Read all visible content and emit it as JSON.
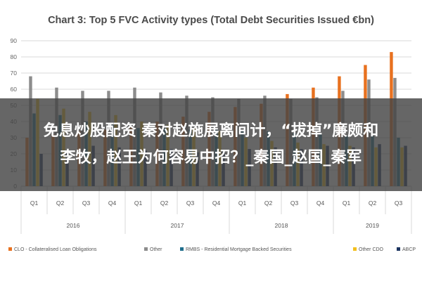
{
  "chart_data": {
    "type": "bar",
    "title": "Chart 3: Top 5 FVC Activity types (Total Debt Securities Issued €bn)",
    "xlabel": "",
    "ylabel": "",
    "ylim": [
      0,
      90
    ],
    "yticks": [
      0,
      10,
      20,
      30,
      40,
      50,
      60,
      70,
      80,
      90
    ],
    "grid": true,
    "legend_position": "bottom",
    "categories": [
      "Q1",
      "Q2",
      "Q3",
      "Q4",
      "Q1",
      "Q2",
      "Q3",
      "Q4",
      "Q1",
      "Q2",
      "Q3",
      "Q4",
      "Q1",
      "Q2",
      "Q3"
    ],
    "groups": [
      {
        "label": "2016",
        "count": 4
      },
      {
        "label": "2017",
        "count": 4
      },
      {
        "label": "2018",
        "count": 4
      },
      {
        "label": "2019",
        "count": 3
      }
    ],
    "series": [
      {
        "name": "CLO - Collateralised Loan Obligations",
        "color": "#e8711f",
        "values": [
          30,
          32,
          34,
          35,
          37,
          40,
          43,
          46,
          49,
          51,
          57,
          61,
          68,
          75,
          83
        ]
      },
      {
        "name": "Other",
        "color": "#8c8c8c",
        "values": [
          68,
          61,
          59,
          59,
          61,
          58,
          56,
          55,
          54,
          56,
          54,
          55,
          59,
          66,
          67
        ]
      },
      {
        "name": "RMBS - Residential Mortgage Backed Securities",
        "color": "#1f6e8c",
        "values": [
          45,
          44,
          40,
          38,
          36,
          36,
          35,
          35,
          34,
          34,
          33,
          32,
          31,
          31,
          30
        ]
      },
      {
        "name": "Other CDO",
        "color": "#f2bf1e",
        "values": [
          54,
          48,
          46,
          44,
          40,
          38,
          36,
          34,
          30,
          28,
          27,
          26,
          25,
          24,
          24
        ]
      },
      {
        "name": "ABCP",
        "color": "#1d3561",
        "values": [
          20,
          22,
          25,
          24,
          22,
          23,
          21,
          22,
          23,
          24,
          23,
          25,
          24,
          26,
          25
        ]
      }
    ]
  },
  "overlay": {
    "line1": "免息炒股配资 秦对赵施展离间计，“拔掉”廉颇和",
    "line2": "李牧，赵王为何容易中招？_秦国_赵国_秦军"
  }
}
